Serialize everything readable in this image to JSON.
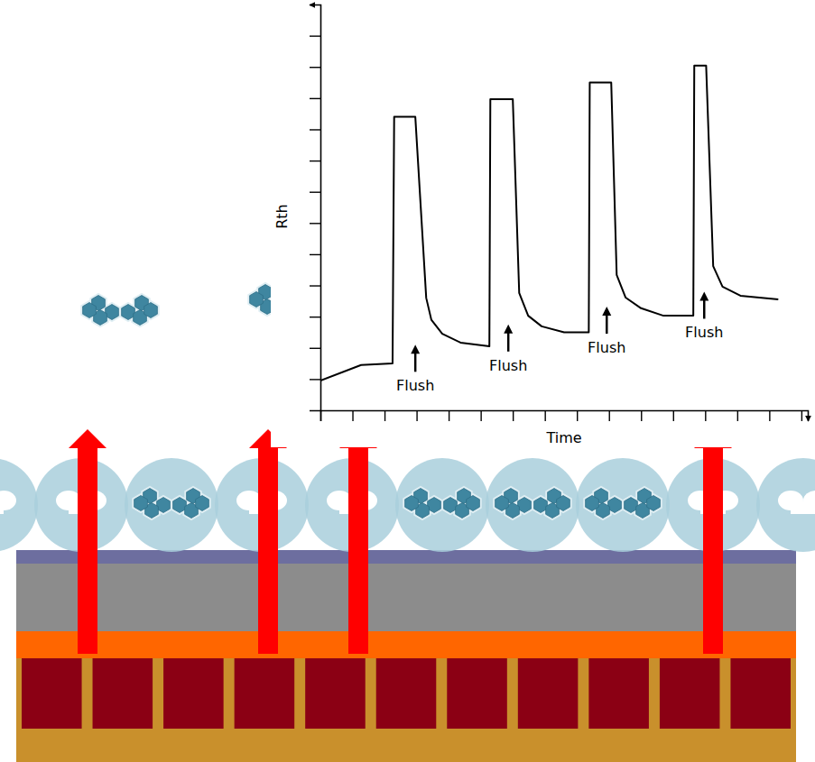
{
  "chart_data": {
    "type": "line",
    "x_label": "Time",
    "y_label": "Rth",
    "color": "#000000",
    "x": [
      0,
      1.27,
      2.25,
      2.3,
      2.96,
      3.3,
      3.46,
      3.8,
      4.37,
      5.27,
      5.3,
      6.0,
      6.2,
      6.48,
      6.9,
      7.6,
      8.37,
      8.4,
      9.07,
      9.24,
      9.52,
      10.0,
      10.7,
      11.63,
      11.66,
      12.03,
      12.25,
      12.54,
      13.1,
      14.28
    ],
    "values": [
      0.95,
      1.45,
      1.5,
      9.4,
      9.4,
      3.6,
      2.9,
      2.45,
      2.17,
      2.05,
      9.97,
      9.97,
      3.76,
      3.03,
      2.69,
      2.5,
      2.5,
      10.5,
      10.5,
      4.34,
      3.61,
      3.27,
      3.03,
      3.03,
      11.04,
      11.04,
      4.62,
      3.96,
      3.67,
      3.55
    ],
    "xlim": [
      0,
      15.2
    ],
    "ylim": [
      0,
      13
    ],
    "xticks": [
      0,
      1,
      2,
      3,
      4,
      5,
      6,
      7,
      8,
      9,
      10,
      11,
      12,
      13,
      14,
      15
    ],
    "yticks": [
      1,
      2,
      3,
      4,
      5,
      6,
      7,
      8,
      9,
      10,
      11,
      12
    ],
    "tick_labels": false,
    "annotations": [
      {
        "text": "Flush",
        "x": 2.96,
        "y": 2.1
      },
      {
        "text": "Flush",
        "x": 5.86,
        "y": 2.75
      },
      {
        "text": "Flush",
        "x": 8.93,
        "y": 3.32
      },
      {
        "text": "Flush",
        "x": 11.97,
        "y": 3.8
      }
    ]
  }
}
